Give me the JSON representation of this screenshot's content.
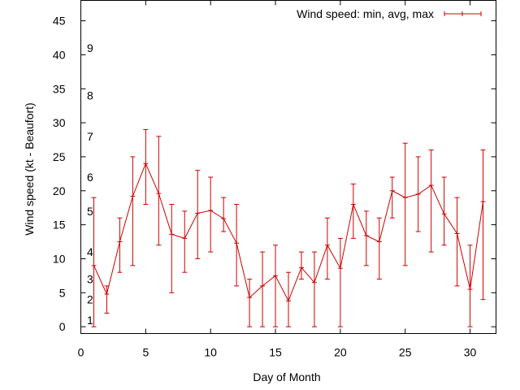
{
  "chart_data": {
    "type": "line",
    "title": "",
    "xlabel": "Day of Month",
    "ylabel": "Wind speed (kt - Beaufort)",
    "xlim": [
      0,
      32
    ],
    "ylim": [
      -1,
      48
    ],
    "x_ticks": [
      0,
      5,
      10,
      15,
      20,
      25,
      30
    ],
    "y_ticks": [
      0,
      5,
      10,
      15,
      20,
      25,
      30,
      35,
      40,
      45
    ],
    "x_tick_labels": [
      "0",
      "5",
      "10",
      "15",
      "20",
      "25",
      "30"
    ],
    "y_tick_labels": [
      "0",
      "5",
      "10",
      "15",
      "20",
      "25",
      "30",
      "35",
      "40",
      "45"
    ],
    "grid": false,
    "legend_position": "top-right",
    "beaufort_labels": [
      {
        "label": "1",
        "kt": 1
      },
      {
        "label": "2",
        "kt": 4
      },
      {
        "label": "3",
        "kt": 7
      },
      {
        "label": "4",
        "kt": 11
      },
      {
        "label": "5",
        "kt": 17
      },
      {
        "label": "6",
        "kt": 22
      },
      {
        "label": "7",
        "kt": 28
      },
      {
        "label": "8",
        "kt": 34
      },
      {
        "label": "9",
        "kt": 41
      }
    ],
    "series": [
      {
        "name": "Wind speed: min, avg, max",
        "color": "#cc0000",
        "x": [
          1,
          2,
          3,
          4,
          5,
          6,
          7,
          8,
          9,
          10,
          11,
          12,
          13,
          14,
          15,
          16,
          17,
          18,
          19,
          20,
          21,
          22,
          23,
          24,
          25,
          26,
          27,
          28,
          29,
          30,
          31
        ],
        "avg": [
          9,
          4.8,
          12.5,
          19.2,
          24,
          19.6,
          13.6,
          13,
          16.7,
          17.1,
          15.9,
          12.3,
          4.3,
          6,
          7.5,
          3.8,
          8.7,
          6.5,
          12,
          8.6,
          18,
          13.4,
          12.5,
          20,
          19,
          19.5,
          20.8,
          16.6,
          13.7,
          5.5,
          18.4
        ],
        "min": [
          0,
          2,
          8,
          9,
          18,
          12,
          5,
          8,
          10,
          11,
          14,
          6,
          0,
          0,
          0,
          0,
          7,
          0,
          7,
          0,
          13,
          9,
          7,
          16,
          9,
          14,
          11,
          12,
          6,
          0,
          4
        ],
        "max": [
          19,
          6,
          16,
          25,
          29,
          28,
          18,
          17,
          23,
          22,
          19,
          18,
          7,
          11,
          12,
          8,
          11,
          11,
          16,
          13,
          21,
          17,
          16,
          22,
          27,
          25,
          26,
          22,
          19,
          12,
          26
        ]
      }
    ]
  }
}
